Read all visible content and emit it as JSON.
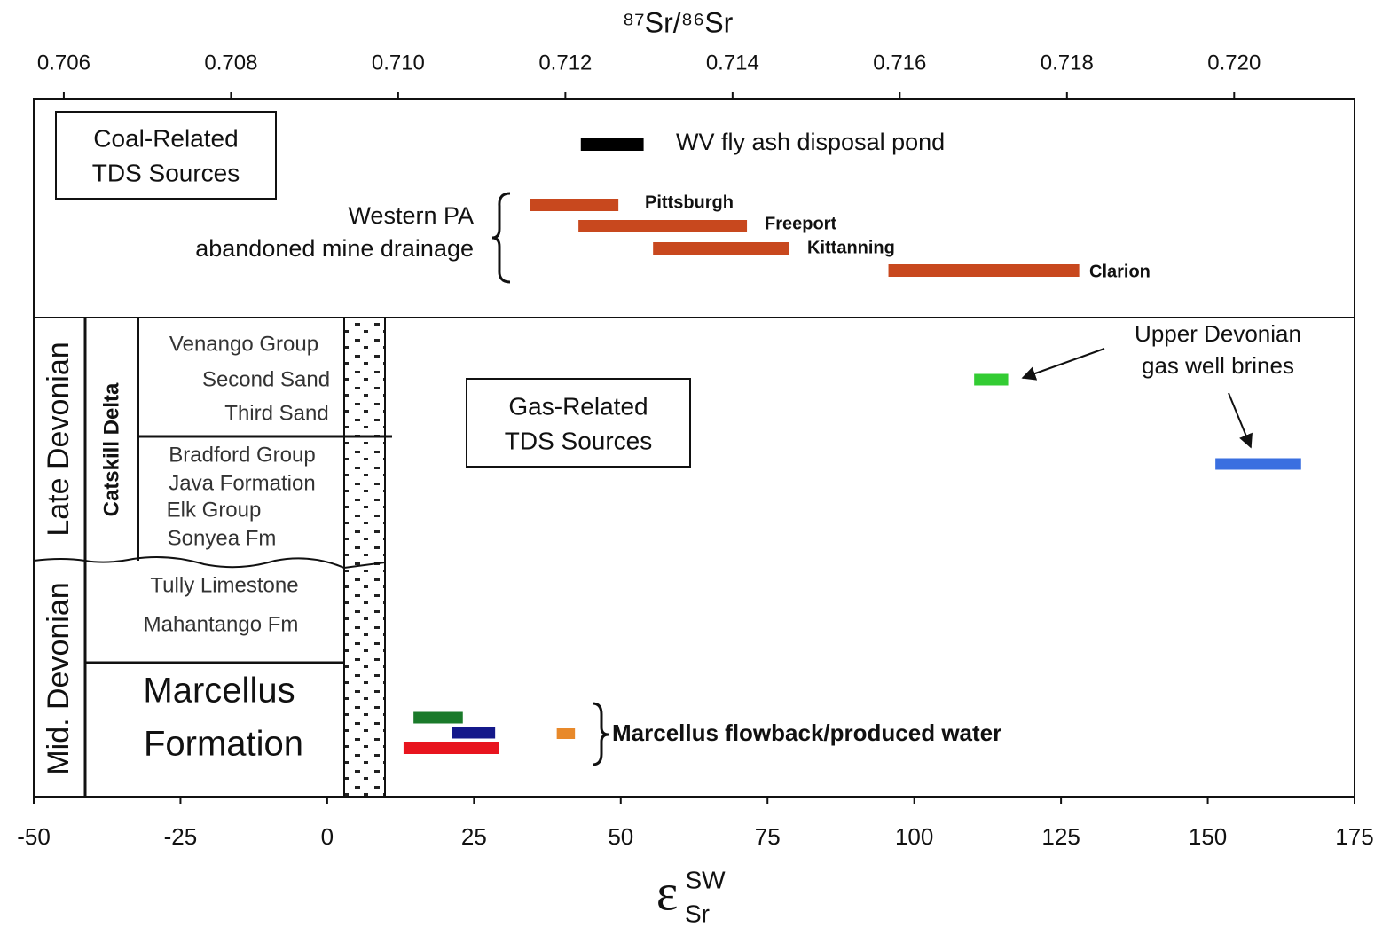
{
  "chart_data": {
    "type": "range-bar",
    "x2label": "⁸⁷Sr/⁸⁶Sr",
    "xlabel": {
      "symbol": "ε",
      "sup": "SW",
      "sub": "Sr"
    },
    "xlim": [
      -50,
      175
    ],
    "xticks": [
      -50,
      -25,
      0,
      25,
      50,
      75,
      100,
      125,
      150,
      175
    ],
    "x2lim": [
      0.70564,
      0.72144
    ],
    "x2ticks": [
      0.706,
      0.708,
      {
        "value": 0.71,
        "label": "0.710"
      },
      0.712,
      0.714,
      0.716,
      0.718,
      {
        "value": 0.72,
        "label": "0.720"
      }
    ],
    "bars": [
      {
        "label": "WV fly ash disposal pond",
        "start": 43.2,
        "end": 53.9,
        "color": "#000000"
      },
      {
        "label": "Pittsburgh",
        "start": 34.5,
        "end": 49.6,
        "color": "#c8481e"
      },
      {
        "label": "Freeport",
        "start": 42.8,
        "end": 71.5,
        "color": "#c8481e"
      },
      {
        "label": "Kittanning",
        "start": 55.5,
        "end": 78.6,
        "color": "#c8481e"
      },
      {
        "label": "Clarion",
        "start": 95.6,
        "end": 128.1,
        "color": "#c8481e"
      },
      {
        "start": 110.2,
        "end": 116.0,
        "color": "#33cc33"
      },
      {
        "start": 151.3,
        "end": 165.9,
        "color": "#3a6fe0"
      },
      {
        "start": 14.7,
        "end": 23.1,
        "color": "#1a7a2a"
      },
      {
        "start": 21.2,
        "end": 28.6,
        "color": "#14188a"
      },
      {
        "start": 13.0,
        "end": 29.2,
        "color": "#e8141e"
      },
      {
        "start": 39.1,
        "end": 42.2,
        "color": "#e8892a"
      }
    ],
    "annotations": {
      "coal_sources": [
        "Coal-Related",
        "TDS Sources"
      ],
      "gas_sources": [
        "Gas-Related",
        "TDS Sources"
      ],
      "amd": [
        "Western PA",
        "abandoned mine drainage"
      ],
      "brines": [
        "Upper Devonian",
        "gas well brines"
      ],
      "marcellus": "Marcellus flowback/produced water"
    }
  },
  "stratigraphy": {
    "periods": [
      "Late Devonian",
      "Mid. Devonian"
    ],
    "delta": "Catskill Delta",
    "units": [
      "Venango Group",
      "Second Sand",
      "Third Sand",
      "Bradford Group",
      "Java Formation",
      "Elk Group",
      "Sonyea Fm",
      "Tully Limestone",
      "Mahantango Fm"
    ],
    "marcellus": [
      "Marcellus",
      "Formation"
    ]
  }
}
